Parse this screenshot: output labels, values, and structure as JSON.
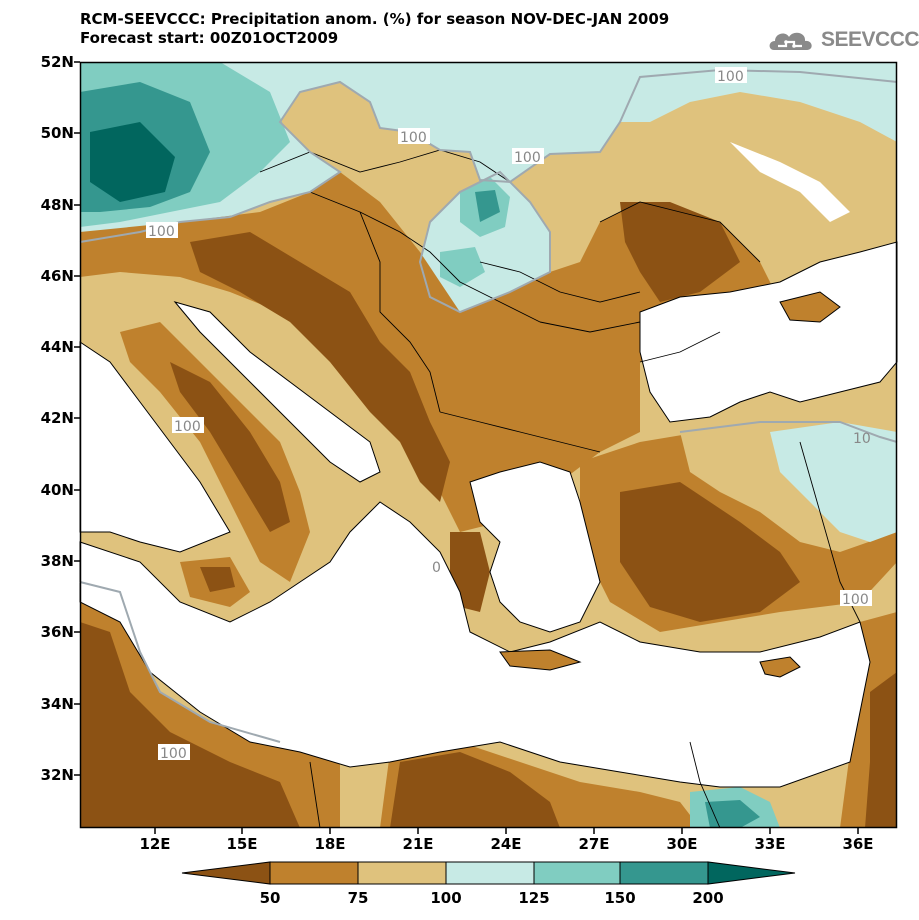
{
  "header": {
    "title_line1": "RCM-SEEVCCC: Precipitation anom. (%) for season NOV-DEC-JAN 2009",
    "title_line2": "Forecast start: 00Z01OCT2009",
    "logo_text": "SEEVCCC"
  },
  "map": {
    "y_ticks": [
      "52N",
      "50N",
      "48N",
      "46N",
      "44N",
      "42N",
      "40N",
      "38N",
      "36N",
      "34N",
      "32N"
    ],
    "x_ticks": [
      "12E",
      "15E",
      "18E",
      "21E",
      "24E",
      "27E",
      "30E",
      "33E",
      "36E"
    ],
    "contour_labels": [
      "100",
      "100",
      "100",
      "100",
      "100",
      "100",
      "100",
      "10",
      "0"
    ],
    "colors": {
      "lt50": "#8c5214",
      "50_75": "#bf812d",
      "75_100": "#dfc27d",
      "100_125": "#c7eae5",
      "125_150": "#80cdc1",
      "150_200": "#35978f",
      "gt200": "#01665e",
      "contour_line": "#9fa9b0"
    }
  },
  "colorbar": {
    "labels": [
      "50",
      "75",
      "100",
      "125",
      "150",
      "200"
    ],
    "colors": [
      "#8c5214",
      "#bf812d",
      "#dfc27d",
      "#c7eae5",
      "#80cdc1",
      "#35978f",
      "#01665e"
    ]
  }
}
